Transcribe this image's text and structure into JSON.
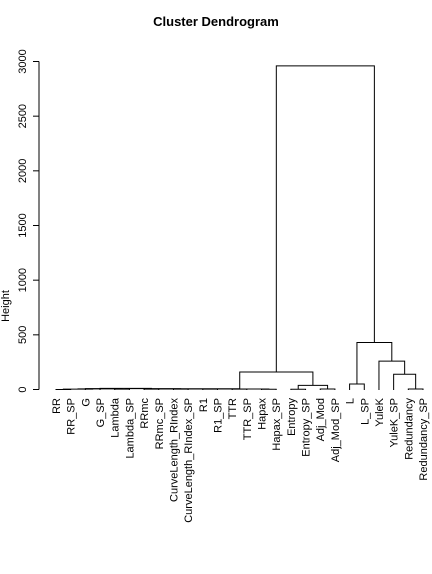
{
  "chart_data": {
    "type": "dendrogram",
    "title": "Cluster Dendrogram",
    "ylabel": "Height",
    "yticks": [
      0,
      500,
      1000,
      1500,
      2000,
      2500,
      3000
    ],
    "ylim": [
      0,
      3000
    ],
    "grid": false,
    "legend": "none",
    "leaves": [
      "RR",
      "RR_SP",
      "G",
      "G_SP",
      "Lambda",
      "Lambda_SP",
      "RRmc",
      "RRmc_SP",
      "CurveLength_RIndex",
      "CurveLength_RIndex_SP",
      "R1",
      "R1_SP",
      "TTR",
      "TTR_SP",
      "Hapax",
      "Hapax_SP",
      "Entropy",
      "Entropy_SP",
      "Adj_Mod",
      "Adj_Mod_SP",
      "L",
      "L_SP",
      "YuleK",
      "YuleK_SP",
      "Redundancy",
      "Redundancy_SP"
    ],
    "merges": [
      {
        "left": {
          "leaf": 0
        },
        "right": {
          "leaf": 1
        },
        "height": 0
      },
      {
        "left": {
          "leaf": 2
        },
        "right": {
          "leaf": 3
        },
        "height": 8
      },
      {
        "left": {
          "node": 0
        },
        "right": {
          "node": 1
        },
        "height": 3
      },
      {
        "left": {
          "leaf": 4
        },
        "right": {
          "leaf": 5
        },
        "height": 3
      },
      {
        "left": {
          "node": 2
        },
        "right": {
          "node": 3
        },
        "height": 6
      },
      {
        "left": {
          "leaf": 6
        },
        "right": {
          "leaf": 7
        },
        "height": 4
      },
      {
        "left": {
          "node": 4
        },
        "right": {
          "node": 5
        },
        "height": 10
      },
      {
        "left": {
          "leaf": 8
        },
        "right": {
          "leaf": 9
        },
        "height": 3
      },
      {
        "left": {
          "node": 6
        },
        "right": {
          "node": 7
        },
        "height": 8
      },
      {
        "left": {
          "leaf": 10
        },
        "right": {
          "leaf": 11
        },
        "height": 3
      },
      {
        "left": {
          "node": 8
        },
        "right": {
          "node": 9
        },
        "height": 5
      },
      {
        "left": {
          "leaf": 12
        },
        "right": {
          "leaf": 13
        },
        "height": 4
      },
      {
        "left": {
          "node": 10
        },
        "right": {
          "node": 11
        },
        "height": 7
      },
      {
        "left": {
          "leaf": 14
        },
        "right": {
          "leaf": 15
        },
        "height": 2
      },
      {
        "left": {
          "node": 12
        },
        "right": {
          "node": 13
        },
        "height": 5
      },
      {
        "left": {
          "leaf": 16
        },
        "right": {
          "leaf": 17
        },
        "height": 2
      },
      {
        "left": {
          "leaf": 18
        },
        "right": {
          "leaf": 19
        },
        "height": 5
      },
      {
        "left": {
          "node": 15
        },
        "right": {
          "node": 16
        },
        "height": 38
      },
      {
        "left": {
          "node": 14
        },
        "right": {
          "node": 17
        },
        "height": 160
      },
      {
        "left": {
          "leaf": 20
        },
        "right": {
          "leaf": 21
        },
        "height": 50
      },
      {
        "left": {
          "leaf": 24
        },
        "right": {
          "leaf": 25
        },
        "height": 5
      },
      {
        "left": {
          "leaf": 23
        },
        "right": {
          "node": 20
        },
        "height": 140
      },
      {
        "left": {
          "leaf": 22
        },
        "right": {
          "node": 21
        },
        "height": 260
      },
      {
        "left": {
          "node": 19
        },
        "right": {
          "node": 22
        },
        "height": 430
      },
      {
        "left": {
          "node": 18
        },
        "right": {
          "node": 23
        },
        "height": 2960
      }
    ]
  }
}
